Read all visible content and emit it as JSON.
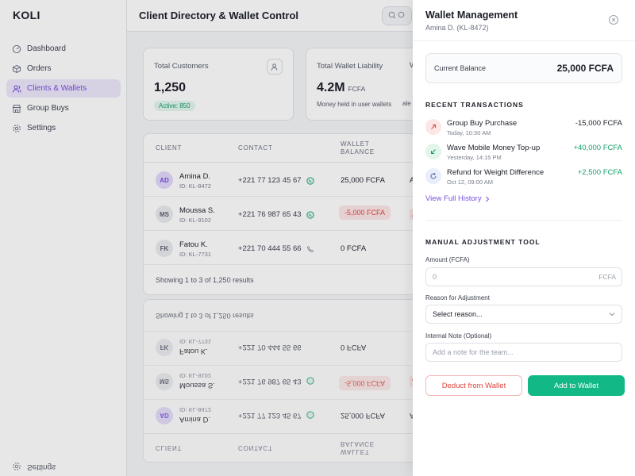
{
  "app": {
    "logo": "KOLI"
  },
  "sidebar": {
    "items": [
      {
        "label": "Dashboard",
        "icon": "dashboard-icon"
      },
      {
        "label": "Orders",
        "icon": "box-icon"
      },
      {
        "label": "Clients & Wallets",
        "icon": "users-icon",
        "active": true
      },
      {
        "label": "Group Buys",
        "icon": "store-icon"
      },
      {
        "label": "Settings",
        "icon": "gear-icon"
      }
    ]
  },
  "header": {
    "title": "Client Directory & Wallet Control"
  },
  "stats": {
    "customers": {
      "label": "Total Customers",
      "value": "1,250",
      "badge": "Active: 850"
    },
    "wallet": {
      "label": "Total Wallet Liability",
      "value": "4.2M",
      "unit": "FCFA",
      "sub": "Money held in user wallets"
    },
    "peek_label": "W",
    "peek_sub": "ale"
  },
  "table": {
    "headers": {
      "client": "CLIENT",
      "contact": "CONTACT",
      "balance_1": "WALLET",
      "balance_2": "BALANCE"
    },
    "rows": [
      {
        "initials": "AD",
        "name": "Amina D.",
        "id": "ID: KL-8472",
        "phone": "+221 77 123 45 67",
        "balance": "25,000 FCFA",
        "peek": "A"
      },
      {
        "initials": "MS",
        "name": "Moussa S.",
        "id": "ID: KL-9102",
        "phone": "+221 76 987 65 43",
        "balance": "-5,000 FCFA",
        "peek": "A"
      },
      {
        "initials": "FK",
        "name": "Fatou K.",
        "id": "ID: KL-7731",
        "phone": "+221 70 444 55 66",
        "balance": "0 FCFA",
        "peek": ""
      }
    ],
    "footer": "Showing 1 to 3 of 1,250 results"
  },
  "drawer": {
    "title": "Wallet Management",
    "subtitle": "Amina D. (KL-8472)",
    "balance_label": "Current Balance",
    "balance_value": "25,000 FCFA",
    "transactions_heading": "RECENT TRANSACTIONS",
    "transactions": [
      {
        "name": "Group Buy Purchase",
        "time": "Today, 10:30 AM",
        "amount": "-15,000 FCFA",
        "type": "debit"
      },
      {
        "name": "Wave Mobile Money Top-up",
        "time": "Yesterday, 14:15 PM",
        "amount": "+40,000 FCFA",
        "type": "credit"
      },
      {
        "name": "Refund for Weight Difference",
        "time": "Oct 12, 09:00 AM",
        "amount": "+2,500 FCFA",
        "type": "refund"
      }
    ],
    "history_link": "View Full History",
    "tool_heading": "MANUAL ADJUSTMENT TOOL",
    "amount_label": "Amount (FCFA)",
    "amount_placeholder": "0",
    "amount_suffix": "FCFA",
    "reason_label": "Reason for Adjustment",
    "reason_value": "Select reason...",
    "note_label": "Internal Note (Optional)",
    "note_placeholder": "Add a note for the team...",
    "deduct_button": "Deduct from Wallet",
    "add_button": "Add to Wallet"
  },
  "colors": {
    "accent": "#7b4fe0",
    "success": "#12b886",
    "danger": "#e0443e"
  }
}
